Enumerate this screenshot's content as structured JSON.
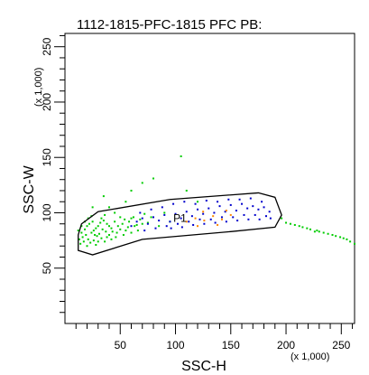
{
  "chart_data": {
    "type": "scatter",
    "title": "1112-1815-PFC-1815 PFC PB:",
    "xlabel": "SSC-H",
    "ylabel": "SSC-W",
    "x_multiplier_label": "(x 1,000)",
    "y_multiplier_label": "(x 1,000)",
    "xlim": [
      0,
      262
    ],
    "ylim": [
      0,
      262
    ],
    "x_ticks": [
      50,
      100,
      150,
      200,
      250
    ],
    "y_ticks": [
      50,
      100,
      150,
      200,
      250
    ],
    "x_tick_labels": [
      "50",
      "100",
      "150",
      "200",
      "250"
    ],
    "y_tick_labels": [
      "50",
      "100",
      "150",
      "200",
      "250"
    ],
    "grid": false,
    "gate": {
      "label": "P1",
      "polygon": [
        [
          15,
          90
        ],
        [
          30,
          101
        ],
        [
          95,
          112
        ],
        [
          175,
          118
        ],
        [
          190,
          114
        ],
        [
          196,
          98
        ],
        [
          190,
          87
        ],
        [
          150,
          83
        ],
        [
          70,
          76
        ],
        [
          25,
          62
        ],
        [
          12,
          66
        ],
        [
          12,
          80
        ]
      ]
    },
    "series": [
      {
        "color": "#00cc00",
        "points": [
          [
            15,
            82
          ],
          [
            18,
            85
          ],
          [
            20,
            88
          ],
          [
            22,
            90
          ],
          [
            25,
            92
          ],
          [
            28,
            86
          ],
          [
            30,
            88
          ],
          [
            32,
            91
          ],
          [
            35,
            93
          ],
          [
            38,
            90
          ],
          [
            16,
            78
          ],
          [
            19,
            80
          ],
          [
            21,
            76
          ],
          [
            24,
            82
          ],
          [
            26,
            84
          ],
          [
            29,
            79
          ],
          [
            31,
            81
          ],
          [
            34,
            85
          ],
          [
            37,
            83
          ],
          [
            40,
            88
          ],
          [
            14,
            72
          ],
          [
            17,
            74
          ],
          [
            20,
            70
          ],
          [
            23,
            73
          ],
          [
            26,
            75
          ],
          [
            28,
            71
          ],
          [
            33,
            77
          ],
          [
            36,
            74
          ],
          [
            42,
            86
          ],
          [
            45,
            92
          ],
          [
            48,
            88
          ],
          [
            52,
            90
          ],
          [
            55,
            84
          ],
          [
            58,
            92
          ],
          [
            62,
            96
          ],
          [
            65,
            89
          ],
          [
            68,
            94
          ],
          [
            72,
            99
          ],
          [
            75,
            91
          ],
          [
            78,
            96
          ],
          [
            12,
            84
          ],
          [
            13,
            76
          ],
          [
            15,
            88
          ],
          [
            18,
            92
          ],
          [
            21,
            95
          ],
          [
            24,
            97
          ],
          [
            27,
            80
          ],
          [
            30,
            74
          ],
          [
            33,
            95
          ],
          [
            36,
            98
          ],
          [
            40,
            80
          ],
          [
            43,
            83
          ],
          [
            46,
            78
          ],
          [
            50,
            85
          ],
          [
            53,
            80
          ],
          [
            57,
            87
          ],
          [
            60,
            82
          ],
          [
            63,
            88
          ],
          [
            66,
            84
          ],
          [
            70,
            90
          ],
          [
            40,
            105
          ],
          [
            55,
            110
          ],
          [
            60,
            120
          ],
          [
            70,
            127
          ],
          [
            80,
            131
          ],
          [
            35,
            115
          ],
          [
            25,
            105
          ],
          [
            90,
            100
          ],
          [
            85,
            88
          ],
          [
            95,
            92
          ],
          [
            105,
            151
          ],
          [
            110,
            120
          ],
          [
            120,
            110
          ],
          [
            60,
            95
          ],
          [
            45,
            100
          ],
          [
            50,
            96
          ],
          [
            38,
            78
          ],
          [
            42,
            76
          ],
          [
            47,
            82
          ],
          [
            54,
            94
          ],
          [
            200,
            91
          ],
          [
            208,
            89
          ],
          [
            215,
            87
          ],
          [
            222,
            85
          ],
          [
            230,
            83
          ],
          [
            238,
            81
          ],
          [
            245,
            79
          ],
          [
            252,
            77
          ],
          [
            258,
            74
          ],
          [
            228,
            84
          ],
          [
            196,
            95
          ],
          [
            204,
            90
          ],
          [
            212,
            88
          ],
          [
            219,
            86
          ],
          [
            226,
            83
          ],
          [
            234,
            82
          ],
          [
            242,
            80
          ],
          [
            249,
            78
          ],
          [
            255,
            76
          ],
          [
            262,
            72
          ]
        ]
      },
      {
        "color": "#0000cc",
        "points": [
          [
            60,
            88
          ],
          [
            65,
            92
          ],
          [
            70,
            95
          ],
          [
            75,
            90
          ],
          [
            80,
            96
          ],
          [
            85,
            93
          ],
          [
            90,
            98
          ],
          [
            95,
            92
          ],
          [
            100,
            99
          ],
          [
            105,
            95
          ],
          [
            110,
            101
          ],
          [
            115,
            97
          ],
          [
            120,
            103
          ],
          [
            125,
            99
          ],
          [
            130,
            104
          ],
          [
            135,
            100
          ],
          [
            140,
            106
          ],
          [
            145,
            101
          ],
          [
            150,
            107
          ],
          [
            155,
            102
          ],
          [
            160,
            108
          ],
          [
            165,
            104
          ],
          [
            170,
            106
          ],
          [
            175,
            103
          ],
          [
            180,
            105
          ],
          [
            185,
            101
          ],
          [
            72,
            84
          ],
          [
            82,
            86
          ],
          [
            92,
            88
          ],
          [
            102,
            90
          ],
          [
            112,
            92
          ],
          [
            122,
            94
          ],
          [
            132,
            94
          ],
          [
            142,
            96
          ],
          [
            152,
            96
          ],
          [
            162,
            98
          ],
          [
            172,
            98
          ],
          [
            182,
            97
          ],
          [
            68,
            100
          ],
          [
            78,
            103
          ],
          [
            88,
            105
          ],
          [
            98,
            108
          ],
          [
            108,
            110
          ],
          [
            118,
            108
          ],
          [
            128,
            111
          ],
          [
            138,
            110
          ],
          [
            148,
            112
          ],
          [
            158,
            112
          ],
          [
            168,
            113
          ],
          [
            178,
            110
          ],
          [
            96,
            86
          ],
          [
            106,
            87
          ],
          [
            116,
            89
          ],
          [
            126,
            90
          ],
          [
            136,
            91
          ],
          [
            146,
            92
          ],
          [
            156,
            93
          ],
          [
            166,
            94
          ],
          [
            176,
            94
          ],
          [
            186,
            95
          ]
        ]
      },
      {
        "color": "#ff8800",
        "points": [
          [
            110,
            92
          ],
          [
            118,
            95
          ],
          [
            126,
            93
          ],
          [
            134,
            97
          ],
          [
            142,
            94
          ],
          [
            150,
            98
          ],
          [
            125,
            101
          ],
          [
            138,
            89
          ],
          [
            146,
            102
          ],
          [
            120,
            88
          ]
        ]
      }
    ]
  }
}
